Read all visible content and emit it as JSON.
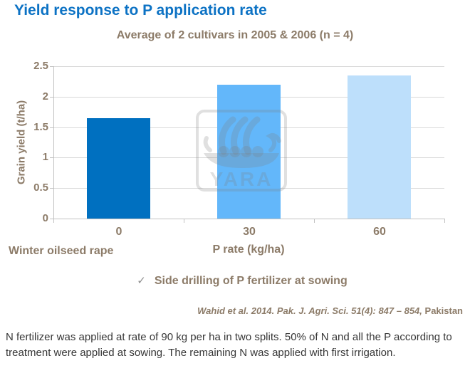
{
  "page": {
    "title": "Yield response to P application rate",
    "footer_note": "N fertilizer was applied at rate of 90 kg per ha in two splits. 50% of N and all the P according to treatment were applied at sowing. The remaining N was applied with first irrigation."
  },
  "chart_data": {
    "type": "bar",
    "title": "Average of 2 cultivars in 2005 & 2006 (n = 4)",
    "categories": [
      "0",
      "30",
      "60"
    ],
    "values": [
      1.65,
      2.2,
      2.35
    ],
    "bar_colors": [
      "#0070c0",
      "#63b7fa",
      "#bddffb"
    ],
    "xlabel": "P rate (kg/ha)",
    "ylabel": "Grain yield (t/ha)",
    "ylim": [
      0,
      2.5
    ],
    "yticks": [
      "0",
      "0.5",
      "1",
      "1.5",
      "2",
      "2.5"
    ],
    "grid": true,
    "legend_position": "none",
    "crop_label": "Winter oilseed rape"
  },
  "annotations": {
    "check_glyph": "✓",
    "check_note": "Side drilling of P fertilizer at sowing",
    "citation_italic": "Wahid et al. 2014. Pak. J. Agri. Sci. 51(4): 847 – 854,",
    "citation_regular": " Pakistan"
  },
  "watermark": {
    "label": "YARA",
    "icon": "yara-viking-ship-logo"
  },
  "colors": {
    "title_blue": "#0c72c4",
    "brand_brown": "#8c7b68",
    "grid": "#d9d9d9",
    "axis": "#c2c2c2",
    "body_text": "#363636"
  }
}
